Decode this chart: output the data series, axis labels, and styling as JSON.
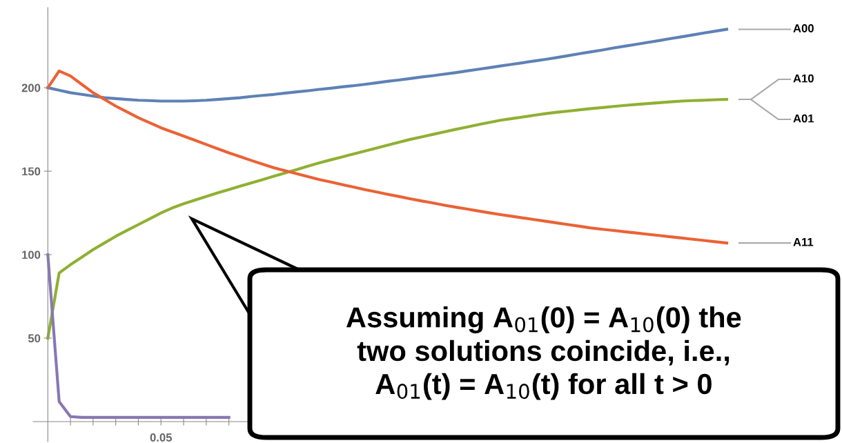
{
  "chart_data": {
    "type": "line",
    "categories": [
      null,
      null,
      null,
      null,
      null,
      null,
      null,
      null,
      null,
      null,
      null,
      null,
      null,
      null,
      null,
      null,
      null,
      null,
      null,
      null,
      null,
      null,
      null,
      null,
      null,
      null,
      null,
      null,
      null,
      null,
      null,
      null,
      null,
      null,
      null,
      null,
      null,
      null,
      null,
      null,
      null,
      null,
      null,
      null,
      null,
      null,
      null,
      null,
      null,
      null,
      null,
      null,
      null,
      null,
      null,
      null,
      null,
      null,
      null,
      null,
      null
    ],
    "ylim": [
      -12,
      248
    ],
    "yticks": [
      50,
      100,
      150,
      200
    ],
    "tick_labels": "y",
    "grid": false,
    "legend": false,
    "marker": "none",
    "line_style": "solid",
    "series": [
      {
        "name": "A00",
        "color": "#5e81b5",
        "values": [
          200,
          198.5,
          197,
          196,
          195,
          194,
          193.5,
          193,
          192.5,
          192.3,
          192,
          192,
          192,
          192.2,
          192.5,
          193,
          193.5,
          194,
          194.8,
          195.4,
          196,
          196.8,
          197.5,
          198.2,
          199,
          199.7,
          200.5,
          201.2,
          202,
          202.9,
          203.8,
          204.6,
          205.5,
          206.4,
          207.2,
          208.1,
          209,
          210,
          211,
          212,
          213,
          214,
          215,
          216,
          217,
          218.1,
          219.2,
          220.4,
          221.5,
          222.6,
          223.8,
          224.9,
          226,
          227.1,
          228.2,
          229.4,
          230.5,
          231.6,
          232.8,
          233.9,
          235
        ]
      },
      {
        "name": "A10",
        "color": "#8fb032",
        "values": [
          50,
          89,
          94,
          98.5,
          103,
          107,
          111,
          114.5,
          118,
          121.5,
          125,
          128,
          130.5,
          132.7,
          134.8,
          137,
          139,
          141,
          143,
          145,
          147,
          149,
          151,
          153,
          155,
          156.8,
          158.5,
          160.3,
          162,
          163.8,
          165.5,
          167.3,
          169,
          170.5,
          172,
          173.5,
          175,
          176.4,
          177.8,
          179.2,
          180.5,
          181.5,
          182.5,
          183.5,
          184.5,
          185.3,
          186,
          186.8,
          187.5,
          188.1,
          188.8,
          189.4,
          190,
          190.5,
          191,
          191.5,
          192,
          192.3,
          192.5,
          192.8,
          193
        ]
      },
      {
        "name": "A11",
        "color": "#eb6235",
        "values": [
          200,
          210,
          207,
          202,
          197,
          193,
          189,
          185.5,
          182,
          179,
          176,
          173.5,
          171,
          168.5,
          166,
          163.5,
          161,
          158.7,
          156.4,
          154.2,
          152,
          150.2,
          148.5,
          146.7,
          145,
          143.5,
          142,
          140.5,
          139,
          137.6,
          136.2,
          134.9,
          133.5,
          132.2,
          131,
          129.7,
          128.5,
          127.4,
          126.2,
          125.1,
          124,
          123,
          122,
          121,
          120,
          119,
          118,
          117,
          116,
          115.2,
          114.5,
          113.7,
          113,
          112.2,
          111.5,
          110.7,
          110,
          109.2,
          108.5,
          107.7,
          107
        ]
      },
      {
        "color": "#8778b3",
        "values": [
          100,
          12,
          3,
          2.5,
          2.5,
          2.5,
          2.5,
          2.5,
          2.5,
          2.5,
          2.5,
          2.5,
          2.5,
          2.5,
          2.5,
          2.5,
          2.5,
          null,
          null,
          null,
          null,
          null,
          null,
          null,
          null,
          null,
          null,
          null,
          null,
          null,
          null,
          null,
          null,
          null,
          null,
          null,
          null,
          null,
          null,
          null,
          null,
          null,
          null,
          null,
          null,
          null,
          null,
          null,
          null,
          null,
          null,
          null,
          null,
          null,
          null,
          null,
          null,
          null,
          null,
          null,
          null
        ]
      }
    ],
    "annotations": [
      "0.05",
      "A01",
      "Assuming A$_{01}$(0) = A$_{10}$(0) the\ntwo solutions coincide, i.e.,\nA$_{01}$(t) = A$_{10}$(t) for all t > 0"
    ]
  }
}
